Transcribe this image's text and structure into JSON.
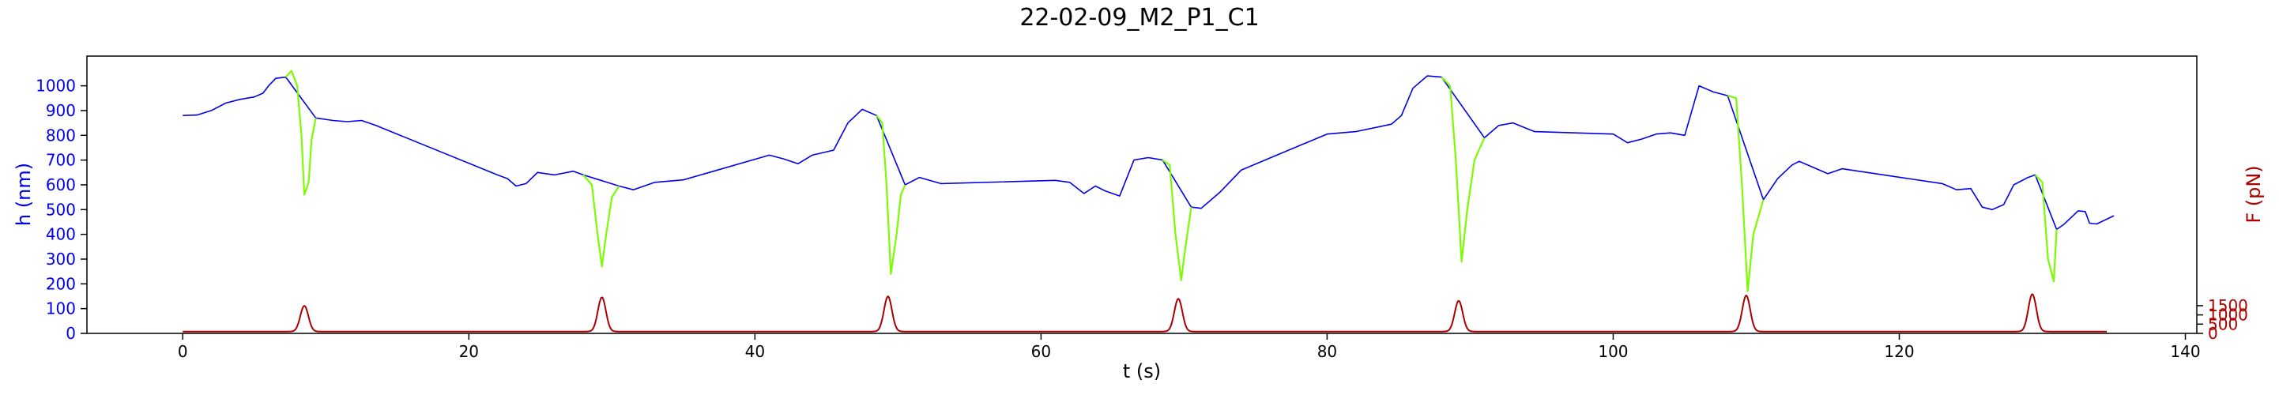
{
  "chart_data": {
    "type": "line",
    "title": "22-02-09_M2_P1_C1",
    "xlabel": "t (s)",
    "ylabel_left": "h (nm)",
    "ylabel_right": "F (pN)",
    "xlim": [
      -6.7,
      140.8
    ],
    "ylim_left": [
      0,
      1120
    ],
    "ylim_right": [
      0,
      15000
    ],
    "x_ticks": [
      0,
      20,
      40,
      60,
      80,
      100,
      120,
      140
    ],
    "y_ticks_left": [
      0,
      100,
      200,
      300,
      400,
      500,
      600,
      700,
      800,
      900,
      1000
    ],
    "y_ticks_right": [
      0,
      500,
      1000,
      1500
    ],
    "grid": false,
    "colors": {
      "h_rest": "#0000ee",
      "h_compression": "#7cfc00",
      "force": "#aa0000",
      "left_axis": "#0000ee",
      "right_axis": "#aa0000"
    },
    "series": [
      {
        "axis": "left",
        "color_key": "h_rest",
        "points": [
          [
            0,
            880
          ],
          [
            1,
            882
          ],
          [
            2,
            900
          ],
          [
            3,
            930
          ],
          [
            4,
            945
          ],
          [
            5,
            955
          ],
          [
            5.6,
            970
          ],
          [
            6.0,
            1000
          ],
          [
            6.5,
            1030
          ],
          [
            7.2,
            1035
          ],
          [
            9.3,
            870
          ],
          [
            10.5,
            860
          ],
          [
            11.5,
            855
          ],
          [
            12.5,
            860
          ],
          [
            13.5,
            840
          ],
          [
            22.0,
            640
          ],
          [
            22.7,
            625
          ],
          [
            23.3,
            595
          ],
          [
            24.0,
            605
          ],
          [
            24.8,
            650
          ],
          [
            26.0,
            640
          ],
          [
            27.3,
            655
          ],
          [
            28.0,
            640
          ],
          [
            30.5,
            595
          ],
          [
            31.5,
            580
          ],
          [
            33.0,
            610
          ],
          [
            35.0,
            620
          ],
          [
            41.0,
            720
          ],
          [
            42.0,
            705
          ],
          [
            43.0,
            685
          ],
          [
            44.0,
            720
          ],
          [
            45.5,
            740
          ],
          [
            46.5,
            850
          ],
          [
            47.5,
            905
          ],
          [
            48.5,
            880
          ],
          [
            50.5,
            600
          ],
          [
            51.5,
            630
          ],
          [
            53.0,
            605
          ],
          [
            61.0,
            618
          ],
          [
            62.0,
            610
          ],
          [
            63.0,
            565
          ],
          [
            63.8,
            595
          ],
          [
            64.5,
            575
          ],
          [
            65.5,
            555
          ],
          [
            66.5,
            700
          ],
          [
            67.5,
            710
          ],
          [
            68.5,
            700
          ],
          [
            70.5,
            510
          ],
          [
            71.2,
            505
          ],
          [
            72.5,
            570
          ],
          [
            74.0,
            660
          ],
          [
            80.0,
            805
          ],
          [
            82.0,
            815
          ],
          [
            84.5,
            845
          ],
          [
            85.2,
            880
          ],
          [
            86.0,
            990
          ],
          [
            87.0,
            1040
          ],
          [
            88.0,
            1035
          ],
          [
            91.0,
            790
          ],
          [
            92.0,
            840
          ],
          [
            93.0,
            850
          ],
          [
            94.5,
            815
          ],
          [
            100.0,
            805
          ],
          [
            101.0,
            770
          ],
          [
            102.0,
            785
          ],
          [
            103.0,
            805
          ],
          [
            104.0,
            810
          ],
          [
            105.0,
            800
          ],
          [
            106.0,
            1000
          ],
          [
            107.0,
            975
          ],
          [
            108.0,
            960
          ],
          [
            110.5,
            540
          ],
          [
            111.5,
            625
          ],
          [
            112.5,
            680
          ],
          [
            113.0,
            695
          ],
          [
            114.0,
            670
          ],
          [
            115.0,
            645
          ],
          [
            116.0,
            665
          ],
          [
            123.0,
            605
          ],
          [
            124.0,
            580
          ],
          [
            125.0,
            585
          ],
          [
            125.8,
            510
          ],
          [
            126.5,
            500
          ],
          [
            127.3,
            520
          ],
          [
            128.0,
            600
          ],
          [
            129.0,
            630
          ],
          [
            129.5,
            640
          ],
          [
            131.0,
            420
          ],
          [
            131.5,
            440
          ],
          [
            132.5,
            495
          ],
          [
            133.0,
            492
          ],
          [
            133.3,
            445
          ],
          [
            133.8,
            442
          ],
          [
            135.0,
            475
          ]
        ]
      },
      {
        "axis": "left",
        "color_key": "h_compression",
        "segments": [
          [
            [
              7.2,
              1035
            ],
            [
              7.6,
              1060
            ],
            [
              8.0,
              1000
            ],
            [
              8.3,
              800
            ],
            [
              8.5,
              560
            ],
            [
              8.8,
              610
            ],
            [
              9.0,
              780
            ],
            [
              9.3,
              870
            ]
          ],
          [
            [
              28.0,
              640
            ],
            [
              28.6,
              600
            ],
            [
              29.0,
              400
            ],
            [
              29.3,
              270
            ],
            [
              29.6,
              400
            ],
            [
              30.0,
              550
            ],
            [
              30.5,
              595
            ]
          ],
          [
            [
              48.5,
              880
            ],
            [
              48.9,
              850
            ],
            [
              49.2,
              600
            ],
            [
              49.5,
              240
            ],
            [
              49.9,
              400
            ],
            [
              50.2,
              560
            ],
            [
              50.5,
              600
            ]
          ],
          [
            [
              68.5,
              700
            ],
            [
              69.0,
              680
            ],
            [
              69.4,
              400
            ],
            [
              69.8,
              215
            ],
            [
              70.1,
              350
            ],
            [
              70.5,
              510
            ]
          ],
          [
            [
              88.0,
              1035
            ],
            [
              88.6,
              1000
            ],
            [
              89.0,
              700
            ],
            [
              89.4,
              290
            ],
            [
              89.8,
              500
            ],
            [
              90.3,
              700
            ],
            [
              91.0,
              790
            ]
          ],
          [
            [
              108.0,
              960
            ],
            [
              108.6,
              950
            ],
            [
              109.0,
              600
            ],
            [
              109.4,
              170
            ],
            [
              109.8,
              400
            ],
            [
              110.5,
              540
            ]
          ],
          [
            [
              129.5,
              640
            ],
            [
              130.0,
              610
            ],
            [
              130.4,
              300
            ],
            [
              130.8,
              210
            ],
            [
              131.0,
              420
            ]
          ]
        ]
      },
      {
        "axis": "right",
        "color_key": "force",
        "baseline": 100,
        "peaks": [
          {
            "t": 8.5,
            "F": 1490
          },
          {
            "t": 29.3,
            "F": 1950
          },
          {
            "t": 49.3,
            "F": 2000
          },
          {
            "t": 69.6,
            "F": 1870
          },
          {
            "t": 89.2,
            "F": 1760
          },
          {
            "t": 109.3,
            "F": 2050
          },
          {
            "t": 129.3,
            "F": 2120
          }
        ]
      }
    ]
  }
}
